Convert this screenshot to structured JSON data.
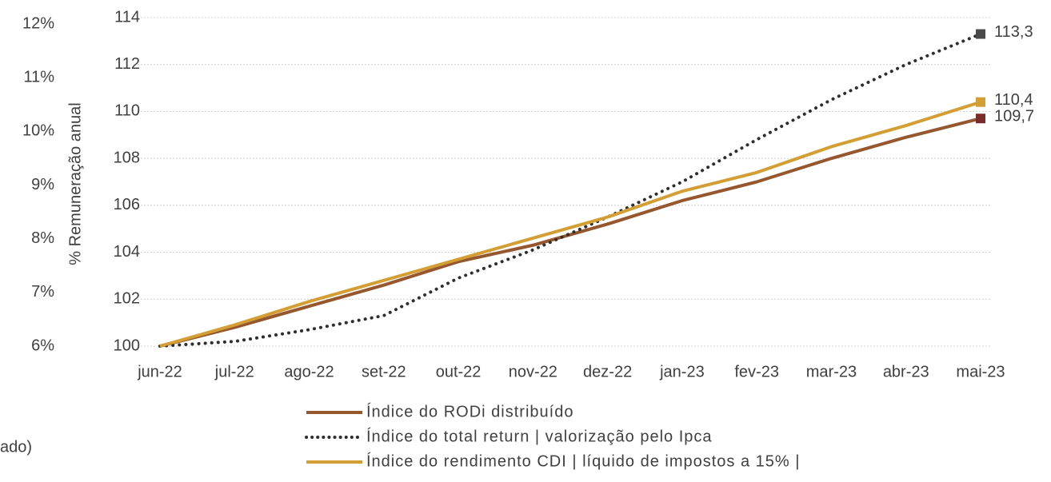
{
  "chart_data": {
    "type": "line",
    "y2_label": "% Remuneração anual",
    "annotation": "ado)",
    "categories": [
      "jun-22",
      "jul-22",
      "ago-22",
      "set-22",
      "out-22",
      "nov-22",
      "dez-22",
      "jan-23",
      "fev-23",
      "mar-23",
      "abr-23",
      "mai-23"
    ],
    "series": [
      {
        "name": "Índice do RODi distribuído",
        "color": "#96572f",
        "marker_color": "#7b2b2b",
        "style": "solid",
        "values": [
          100,
          100.8,
          101.7,
          102.6,
          103.6,
          104.3,
          105.2,
          106.2,
          107.0,
          108.0,
          108.9,
          109.7
        ],
        "value_labels": [
          null,
          null,
          null,
          null,
          null,
          null,
          null,
          null,
          null,
          null,
          null,
          "109,7"
        ]
      },
      {
        "name": "Índice do total return | valorização pelo Ipca",
        "color": "#2e2e2e",
        "marker_color": "#4a4a4a",
        "style": "dotted",
        "values": [
          100,
          100.2,
          100.7,
          101.3,
          102.9,
          104.1,
          105.5,
          107.0,
          108.8,
          110.5,
          112.0,
          113.3
        ],
        "value_labels": [
          null,
          null,
          null,
          null,
          null,
          null,
          null,
          null,
          null,
          null,
          null,
          "113,3"
        ]
      },
      {
        "name": "Índice do rendimento CDI | líquido de impostos a 15% |",
        "color": "#d39e34",
        "marker_color": "#d39e34",
        "style": "solid",
        "values": [
          100,
          100.9,
          101.9,
          102.8,
          103.7,
          104.6,
          105.5,
          106.6,
          107.4,
          108.5,
          109.4,
          110.4
        ],
        "value_labels": [
          null,
          null,
          null,
          null,
          null,
          null,
          null,
          null,
          null,
          null,
          null,
          "110,4"
        ]
      }
    ],
    "ylim": [
      100,
      114
    ],
    "yticks": [
      100,
      102,
      104,
      106,
      108,
      110,
      112,
      114
    ],
    "y2lim": [
      6,
      12
    ],
    "y2ticks": [
      {
        "value": 6,
        "label": "6%"
      },
      {
        "value": 7,
        "label": "7%"
      },
      {
        "value": 8,
        "label": "8%"
      },
      {
        "value": 9,
        "label": "9%"
      },
      {
        "value": 10,
        "label": "10%"
      },
      {
        "value": 11,
        "label": "11%"
      },
      {
        "value": 12,
        "label": "12%"
      }
    ],
    "grid": true
  }
}
